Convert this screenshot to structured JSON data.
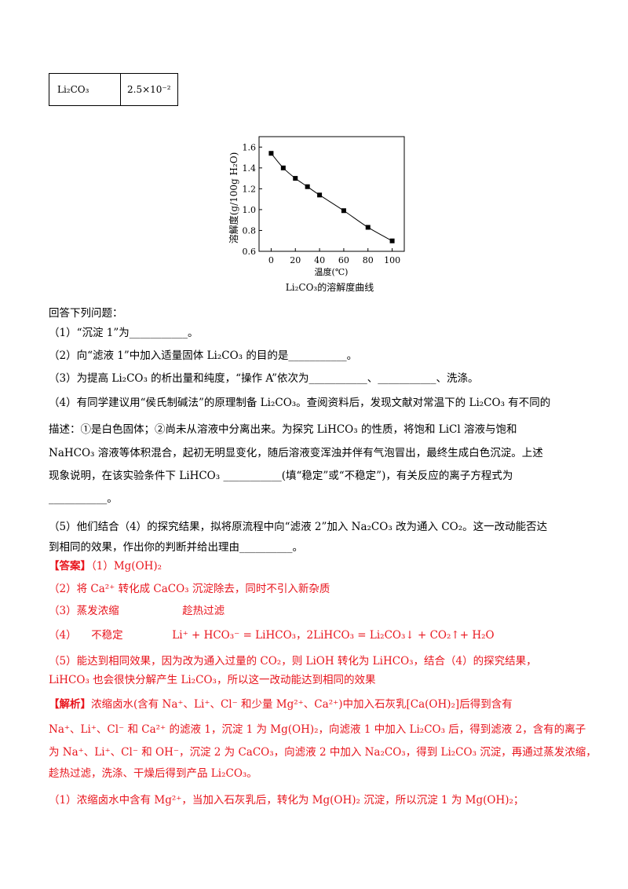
{
  "table": {
    "row": {
      "compound": "Li₂CO₃",
      "value": "2.5×10⁻²"
    }
  },
  "chart_data": {
    "type": "line",
    "title": "",
    "caption": "Li₂CO₃的溶解度曲线",
    "xlabel": "温度(℃)",
    "ylabel": "溶解度(g/100g H₂O)",
    "xlim": [
      -10,
      110
    ],
    "ylim": [
      0.6,
      1.7
    ],
    "xticks": [
      0,
      20,
      40,
      60,
      80,
      100
    ],
    "yticks": [
      0.6,
      0.8,
      1.0,
      1.2,
      1.4,
      1.6
    ],
    "ytick_labels": [
      "0.6",
      "0.8",
      "1.0",
      "1.2",
      "1.4",
      "1.6"
    ],
    "x": [
      0,
      10,
      20,
      30,
      40,
      60,
      80,
      100
    ],
    "y": [
      1.54,
      1.4,
      1.3,
      1.22,
      1.14,
      0.99,
      0.83,
      0.7
    ],
    "grid": false,
    "marker": "square"
  },
  "text": {
    "q_intro": "回答下列问题：",
    "q1": "（1）“沉淀 1”为___________。",
    "q2": "（2）向“滤液 1”中加入适量固体 Li₂CO₃ 的目的是___________。",
    "q3": "（3）为提高 Li₂CO₃ 的析出量和纯度，“操作 A”依次为___________、___________、洗涤。",
    "q4_l1": "（4）有同学建议用“侯氏制碱法”的原理制备 Li₂CO₃。查阅资料后，发现文献对常温下的 Li₂CO₃ 有不同的",
    "q4_l2": "描述：①是白色固体；②尚未从溶液中分离出来。为探究 LiHCO₃ 的性质，将饱和 LiCl 溶液与饱和",
    "q4_l3": "NaHCO₃ 溶液等体积混合，起初无明显变化，随后溶液变浑浊并伴有气泡冒出，最终生成白色沉淀。上述",
    "q4_l4": "现象说明，在该实验条件下 LiHCO₃ ___________(填“稳定”或“不稳定”)，有关反应的离子方程式为",
    "q4_l5": "___________。",
    "q5_l1": "（5）他们结合（4）的探究结果，拟将原流程中向“滤液 2”加入 Na₂CO₃ 改为通入 CO₂。这一改动能否达",
    "q5_l2": "到相同的效果，作出你的判断并给出理由__________。",
    "ans_label": "【答案】",
    "ans1": "（1）Mg(OH)₂",
    "ans2": "（2）将 Ca²⁺ 转化成 CaCO₃ 沉淀除去，同时不引入新杂质",
    "ans3a": "（3）蒸发浓缩",
    "ans3b": "趁热过滤",
    "ans4a": "（4）",
    "ans4b": "不稳定",
    "ans4c": "Li⁺ + HCO₃⁻ = LiHCO₃，2LiHCO₃ = Li₂CO₃↓ + CO₂↑+ H₂O",
    "ans5_l1": "（5）能达到相同效果，因为改为通入过量的 CO₂，则 LiOH 转化为 LiHCO₃，结合（4）的探究结果，",
    "ans5_l2": "LiHCO₃ 也会很快分解产生 Li₂CO₃，所以这一改动能达到相同的效果",
    "ana_label": "【解析】",
    "ana_l1": "浓缩卤水(含有 Na⁺、Li⁺、Cl⁻ 和少量 Mg²⁺、Ca²⁺)中加入石灰乳[Ca(OH)₂]后得到含有",
    "ana_l2": "Na⁺、Li⁺、Cl⁻ 和 Ca²⁺ 的滤液 1，沉淀 1 为 Mg(OH)₂，向滤液 1 中加入 Li₂CO₃ 后，得到滤液 2，含有的离子",
    "ana_l3": "为 Na⁺、Li⁺、Cl⁻ 和 OH⁻，沉淀 2 为 CaCO₃，向滤液 2 中加入 Na₂CO₃，得到 Li₂CO₃ 沉淀，再通过蒸发浓缩，",
    "ana_l4": "趁热过滤，洗涤、干燥后得到产品 Li₂CO₃。",
    "ana_l5": "（1）浓缩卤水中含有 Mg²⁺，当加入石灰乳后，转化为 Mg(OH)₂ 沉淀，所以沉淀 1 为 Mg(OH)₂；"
  }
}
